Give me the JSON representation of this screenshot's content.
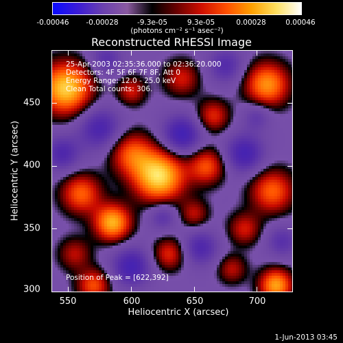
{
  "colorbar": {
    "ticks": [
      "-0.00046",
      "-0.00028",
      "-9.3e-05",
      "9.3e-05",
      "0.00028",
      "0.00046"
    ],
    "unit": "(photons cm⁻² s⁻¹ asec⁻²)",
    "stops": [
      "#0a0aff",
      "#3b1cd6",
      "#6a40b0",
      "#8a5aa0",
      "#000000",
      "#6a0000",
      "#d01000",
      "#ff5000",
      "#ffa000",
      "#ffe060",
      "#ffffff"
    ]
  },
  "chart_data": {
    "type": "heatmap",
    "title": "Reconstructed RHESSI Image",
    "xlabel": "Heliocentric X (arcsec)",
    "ylabel": "Heliocentric Y (arcsec)",
    "xlim": [
      537,
      729
    ],
    "ylim": [
      299,
      492
    ],
    "xticks": [
      "550",
      "600",
      "650",
      "700"
    ],
    "yticks": [
      "300",
      "350",
      "400",
      "450"
    ],
    "info": [
      "25-Apr-2003 02:35:36.000 to 02:36:20.000",
      "Detectors: 4F 5F 6F 7F 8F, Att 0",
      "Energy Range: 12.0 - 25.0 keV",
      "Clean    Total counts: 306."
    ],
    "peak_label": "Position of Peak = [622,392]",
    "peak": [
      622,
      392
    ],
    "sources": [
      {
        "x": 622,
        "y": 392,
        "s": 14,
        "a": 1.0
      },
      {
        "x": 585,
        "y": 355,
        "s": 10,
        "a": 0.85
      },
      {
        "x": 548,
        "y": 462,
        "s": 14,
        "a": 0.95
      },
      {
        "x": 560,
        "y": 378,
        "s": 11,
        "a": 0.6
      },
      {
        "x": 600,
        "y": 410,
        "s": 12,
        "a": 0.55
      },
      {
        "x": 660,
        "y": 400,
        "s": 10,
        "a": 0.55
      },
      {
        "x": 708,
        "y": 465,
        "s": 12,
        "a": 0.75
      },
      {
        "x": 712,
        "y": 380,
        "s": 12,
        "a": 0.6
      },
      {
        "x": 715,
        "y": 305,
        "s": 9,
        "a": 0.8
      },
      {
        "x": 640,
        "y": 470,
        "s": 10,
        "a": 0.4
      },
      {
        "x": 690,
        "y": 350,
        "s": 9,
        "a": 0.4
      },
      {
        "x": 570,
        "y": 305,
        "s": 9,
        "a": 0.55
      },
      {
        "x": 630,
        "y": 330,
        "s": 9,
        "a": 0.45
      },
      {
        "x": 665,
        "y": 440,
        "s": 9,
        "a": 0.45
      },
      {
        "x": 600,
        "y": 460,
        "s": 8,
        "a": 0.4
      },
      {
        "x": 680,
        "y": 318,
        "s": 8,
        "a": 0.35
      },
      {
        "x": 555,
        "y": 330,
        "s": 9,
        "a": 0.35
      },
      {
        "x": 650,
        "y": 362,
        "s": 8,
        "a": 0.35
      },
      {
        "x": 600,
        "y": 320,
        "s": 11,
        "a": -0.55
      },
      {
        "x": 640,
        "y": 425,
        "s": 11,
        "a": -0.6
      },
      {
        "x": 575,
        "y": 430,
        "s": 12,
        "a": -0.5
      },
      {
        "x": 690,
        "y": 410,
        "s": 11,
        "a": -0.55
      },
      {
        "x": 655,
        "y": 335,
        "s": 10,
        "a": -0.45
      },
      {
        "x": 545,
        "y": 410,
        "s": 10,
        "a": -0.45
      },
      {
        "x": 675,
        "y": 480,
        "s": 10,
        "a": -0.4
      },
      {
        "x": 720,
        "y": 340,
        "s": 9,
        "a": -0.35
      },
      {
        "x": 580,
        "y": 485,
        "s": 9,
        "a": -0.35
      },
      {
        "x": 625,
        "y": 360,
        "s": 8,
        "a": -0.35
      },
      {
        "x": 700,
        "y": 440,
        "s": 8,
        "a": -0.3
      }
    ]
  },
  "timestamp": "1-Jun-2013 03:45"
}
